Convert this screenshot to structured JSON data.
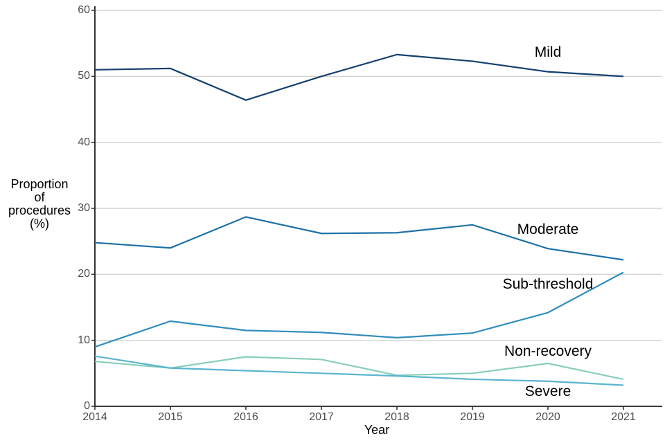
{
  "colors": {
    "grid": "#cbcbcb",
    "axis": "#000000",
    "tick": "#333333",
    "tick_label": "#4d4d4d",
    "text": "#000000"
  },
  "chart_data": {
    "type": "line",
    "title": "",
    "xlabel": "Year",
    "ylabel_lines": [
      "Proportion",
      "of",
      "procedures",
      "(%)"
    ],
    "x": [
      2014,
      2015,
      2016,
      2017,
      2018,
      2019,
      2020,
      2021
    ],
    "xticks": [
      2014,
      2015,
      2016,
      2017,
      2018,
      2019,
      2020,
      2021
    ],
    "yticks": [
      0,
      10,
      20,
      30,
      40,
      50,
      60
    ],
    "ylim": [
      0,
      60
    ],
    "grid": "horizontal-major-only",
    "legend": "direct-labels-on-plot",
    "series": [
      {
        "name": "Mild",
        "color": "#14406e",
        "values": [
          51.0,
          51.2,
          46.4,
          50.0,
          53.3,
          52.3,
          50.7,
          50.0
        ],
        "label_at": {
          "x": 2020,
          "y": 53.6
        }
      },
      {
        "name": "Moderate",
        "color": "#1d71a8",
        "values": [
          24.8,
          24.0,
          28.7,
          26.2,
          26.3,
          27.5,
          23.9,
          22.2
        ],
        "label_at": {
          "x": 2020,
          "y": 26.8
        }
      },
      {
        "name": "Sub-threshold",
        "color": "#2f8cbe",
        "values": [
          9.0,
          12.9,
          11.5,
          11.2,
          10.4,
          11.1,
          14.2,
          20.3
        ],
        "label_at": {
          "x": 2020,
          "y": 18.5
        }
      },
      {
        "name": "Non-recovery",
        "color": "#87cebc",
        "values": [
          6.8,
          5.8,
          7.5,
          7.1,
          4.7,
          5.0,
          6.5,
          4.1
        ],
        "label_at": {
          "x": 2020,
          "y": 8.3
        }
      },
      {
        "name": "Severe",
        "color": "#58b5cf",
        "values": [
          7.6,
          5.8,
          5.4,
          5.0,
          4.6,
          4.1,
          3.8,
          3.2
        ],
        "label_at": {
          "x": 2020,
          "y": 2.2
        }
      }
    ]
  }
}
